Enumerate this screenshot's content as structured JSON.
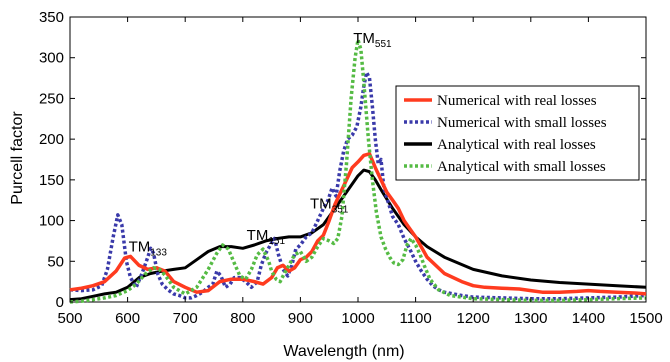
{
  "chart_data": {
    "type": "line",
    "xlabel": "Wavelength (nm)",
    "ylabel": "Purcell factor",
    "xlim": [
      500,
      1500
    ],
    "ylim": [
      0,
      350
    ],
    "xticks": [
      500,
      600,
      700,
      800,
      900,
      1000,
      1100,
      1200,
      1300,
      1400,
      1500
    ],
    "yticks": [
      0,
      50,
      100,
      150,
      200,
      250,
      300,
      350
    ],
    "grid": false,
    "legend_position": "right",
    "series": [
      {
        "name": "Numerical with real losses",
        "color": "#ff3b1f",
        "style": "solid",
        "x": [
          500,
          520,
          540,
          560,
          580,
          595,
          605,
          620,
          635,
          650,
          665,
          680,
          700,
          720,
          740,
          760,
          780,
          800,
          820,
          835,
          850,
          860,
          870,
          880,
          890,
          900,
          910,
          920,
          930,
          940,
          950,
          960,
          970,
          980,
          990,
          1000,
          1010,
          1020,
          1030,
          1040,
          1050,
          1060,
          1070,
          1080,
          1090,
          1100,
          1120,
          1150,
          1180,
          1200,
          1220,
          1250,
          1280,
          1300,
          1320,
          1350,
          1380,
          1400,
          1420,
          1450,
          1480,
          1500
        ],
        "y": [
          15,
          17,
          20,
          25,
          38,
          54,
          56,
          45,
          40,
          42,
          38,
          25,
          18,
          12,
          14,
          25,
          28,
          28,
          25,
          22,
          30,
          42,
          45,
          38,
          42,
          52,
          55,
          62,
          75,
          82,
          100,
          120,
          135,
          150,
          165,
          172,
          180,
          182,
          165,
          150,
          135,
          125,
          115,
          100,
          90,
          80,
          55,
          35,
          25,
          20,
          18,
          17,
          16,
          14,
          12,
          12,
          13,
          14,
          13,
          12,
          11,
          10
        ]
      },
      {
        "name": "Numerical with small losses",
        "color": "#3a3aaa",
        "style": "dotted",
        "x": [
          500,
          520,
          540,
          555,
          565,
          575,
          583,
          590,
          598,
          605,
          615,
          625,
          635,
          640,
          645,
          652,
          660,
          670,
          680,
          690,
          700,
          710,
          720,
          730,
          740,
          748,
          755,
          762,
          770,
          778,
          785,
          795,
          805,
          815,
          825,
          832,
          840,
          848,
          855,
          862,
          870,
          878,
          885,
          892,
          900,
          910,
          920,
          930,
          940,
          948,
          955,
          962,
          968,
          975,
          982,
          990,
          998,
          1005,
          1010,
          1015,
          1020,
          1025,
          1030,
          1035,
          1040,
          1045,
          1050,
          1060,
          1070,
          1080,
          1090,
          1100,
          1110,
          1120,
          1130,
          1140,
          1150,
          1180,
          1200,
          1250,
          1300,
          1350,
          1400,
          1450,
          1500
        ],
        "y": [
          15,
          14,
          15,
          20,
          40,
          80,
          107,
          95,
          50,
          30,
          18,
          35,
          55,
          66,
          60,
          35,
          22,
          15,
          10,
          8,
          5,
          5,
          8,
          12,
          18,
          22,
          38,
          32,
          18,
          22,
          30,
          30,
          25,
          18,
          25,
          45,
          60,
          70,
          78,
          58,
          40,
          32,
          45,
          65,
          70,
          80,
          85,
          100,
          115,
          125,
          140,
          130,
          160,
          185,
          200,
          205,
          215,
          240,
          265,
          282,
          275,
          240,
          200,
          170,
          175,
          140,
          128,
          105,
          95,
          78,
          65,
          50,
          38,
          28,
          20,
          15,
          12,
          8,
          6,
          5,
          4,
          4,
          5,
          6,
          8
        ]
      },
      {
        "name": "Analytical with real losses",
        "color": "#000000",
        "style": "solid",
        "x": [
          500,
          520,
          540,
          560,
          580,
          600,
          620,
          640,
          660,
          680,
          700,
          720,
          740,
          760,
          780,
          800,
          820,
          840,
          860,
          880,
          900,
          920,
          940,
          960,
          980,
          1000,
          1010,
          1020,
          1030,
          1040,
          1060,
          1080,
          1100,
          1120,
          1150,
          1200,
          1250,
          1300,
          1350,
          1400,
          1450,
          1500
        ],
        "y": [
          3,
          4,
          7,
          10,
          12,
          18,
          30,
          35,
          38,
          40,
          42,
          52,
          62,
          68,
          68,
          66,
          70,
          75,
          78,
          80,
          80,
          85,
          95,
          115,
          135,
          155,
          162,
          160,
          150,
          138,
          115,
          95,
          80,
          68,
          55,
          40,
          32,
          27,
          24,
          22,
          20,
          18
        ]
      },
      {
        "name": "Analytical with small losses",
        "color": "#55bb44",
        "style": "dotted",
        "x": [
          500,
          520,
          540,
          560,
          580,
          600,
          615,
          630,
          645,
          655,
          665,
          680,
          700,
          720,
          740,
          755,
          765,
          775,
          785,
          795,
          805,
          815,
          825,
          835,
          845,
          850,
          858,
          865,
          872,
          880,
          890,
          900,
          910,
          920,
          930,
          940,
          950,
          958,
          965,
          972,
          980,
          988,
          995,
          1000,
          1005,
          1010,
          1018,
          1025,
          1032,
          1040,
          1048,
          1055,
          1062,
          1070,
          1078,
          1085,
          1092,
          1100,
          1108,
          1115,
          1125,
          1140,
          1160,
          1200,
          1250,
          1300,
          1350,
          1400,
          1450,
          1500
        ],
        "y": [
          0,
          1,
          3,
          5,
          8,
          14,
          22,
          34,
          42,
          40,
          33,
          18,
          10,
          18,
          40,
          60,
          70,
          65,
          48,
          32,
          28,
          40,
          58,
          65,
          50,
          38,
          28,
          25,
          35,
          45,
          58,
          62,
          50,
          55,
          68,
          78,
          75,
          72,
          78,
          105,
          170,
          250,
          300,
          322,
          310,
          270,
          200,
          150,
          110,
          80,
          65,
          55,
          48,
          46,
          52,
          70,
          78,
          70,
          58,
          45,
          28,
          15,
          8,
          4,
          3,
          2,
          2,
          3,
          4,
          5
        ]
      }
    ],
    "annotations": [
      {
        "base": "TM",
        "sub": "133",
        "x": 635,
        "y": 62
      },
      {
        "base": "TM",
        "sub": "151",
        "x": 840,
        "y": 76
      },
      {
        "base": "TM",
        "sub": "351",
        "x": 950,
        "y": 115
      },
      {
        "base": "TM",
        "sub": "551",
        "x": 1025,
        "y": 318
      }
    ]
  }
}
